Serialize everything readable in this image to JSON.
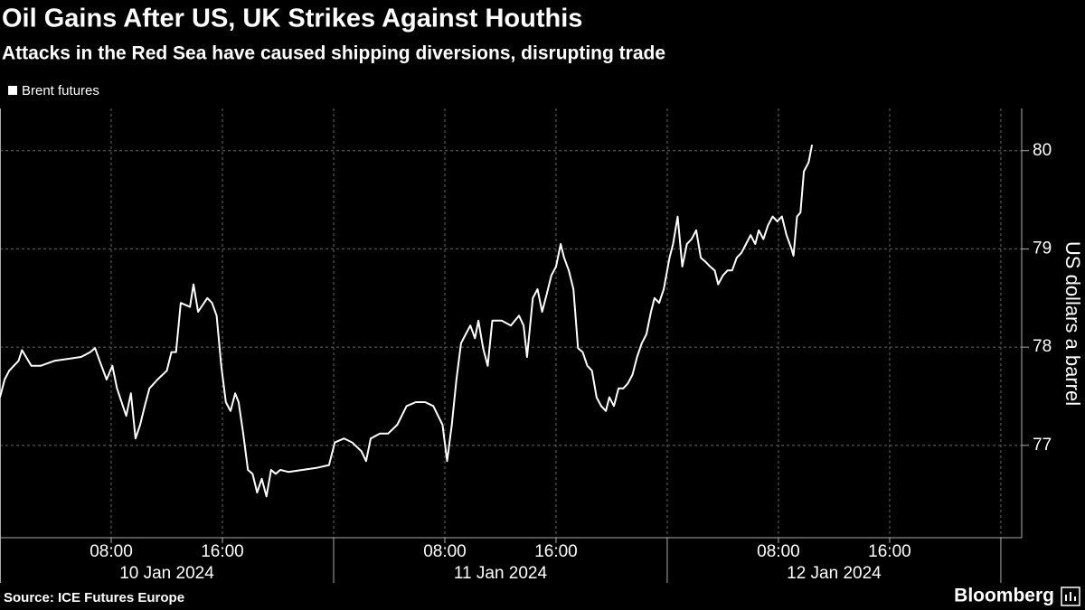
{
  "chart_data": {
    "type": "line",
    "title": "Oil Gains After US, UK Strikes Against Houthis",
    "subtitle": "Attacks in the Red Sea have caused shipping diversions, disrupting trade",
    "y_axis_label": "US dollars a barrel",
    "source": "Source: ICE Futures Europe",
    "brand": "Bloomberg",
    "x": [
      "2024-01-10T00:00",
      "2024-01-10T00:20",
      "2024-01-10T00:40",
      "2024-01-10T01:20",
      "2024-01-10T01:35",
      "2024-01-10T02:15",
      "2024-01-10T02:55",
      "2024-01-10T03:55",
      "2024-01-10T04:50",
      "2024-01-10T05:50",
      "2024-01-10T06:30",
      "2024-01-10T06:50",
      "2024-01-10T07:10",
      "2024-01-10T07:40",
      "2024-01-10T08:05",
      "2024-01-10T08:25",
      "2024-01-10T09:05",
      "2024-01-10T09:25",
      "2024-01-10T09:45",
      "2024-01-10T10:05",
      "2024-01-10T10:25",
      "2024-01-10T10:45",
      "2024-01-10T11:20",
      "2024-01-10T12:00",
      "2024-01-10T12:20",
      "2024-01-10T12:40",
      "2024-01-10T13:00",
      "2024-01-10T13:40",
      "2024-01-10T13:55",
      "2024-01-10T14:15",
      "2024-01-10T14:55",
      "2024-01-10T15:15",
      "2024-01-10T15:35",
      "2024-01-10T15:55",
      "2024-01-10T16:15",
      "2024-01-10T16:35",
      "2024-01-10T16:55",
      "2024-01-10T17:10",
      "2024-01-10T17:30",
      "2024-01-10T17:50",
      "2024-01-10T18:10",
      "2024-01-10T18:30",
      "2024-01-10T18:50",
      "2024-01-10T19:10",
      "2024-01-10T19:30",
      "2024-01-10T19:50",
      "2024-01-10T20:10",
      "2024-01-10T20:45",
      "2024-01-10T21:45",
      "2024-01-10T22:45",
      "2024-01-10T23:40",
      "2024-01-11T00:05",
      "2024-01-11T00:45",
      "2024-01-11T01:20",
      "2024-01-11T02:00",
      "2024-01-11T02:20",
      "2024-01-11T02:40",
      "2024-01-11T03:20",
      "2024-01-11T03:55",
      "2024-01-11T04:35",
      "2024-01-11T05:15",
      "2024-01-11T05:55",
      "2024-01-11T06:35",
      "2024-01-11T07:10",
      "2024-01-11T07:50",
      "2024-01-11T08:10",
      "2024-01-11T08:30",
      "2024-01-11T08:50",
      "2024-01-11T09:10",
      "2024-01-11T09:30",
      "2024-01-11T09:50",
      "2024-01-11T10:10",
      "2024-01-11T10:25",
      "2024-01-11T10:45",
      "2024-01-11T11:05",
      "2024-01-11T11:25",
      "2024-01-11T12:05",
      "2024-01-11T12:45",
      "2024-01-11T13:20",
      "2024-01-11T13:40",
      "2024-01-11T13:55",
      "2024-01-11T14:20",
      "2024-01-11T14:40",
      "2024-01-11T15:00",
      "2024-01-11T15:20",
      "2024-01-11T15:40",
      "2024-01-11T16:00",
      "2024-01-11T16:20",
      "2024-01-11T16:35",
      "2024-01-11T16:55",
      "2024-01-11T17:15",
      "2024-01-11T17:35",
      "2024-01-11T17:55",
      "2024-01-11T18:15",
      "2024-01-11T18:35",
      "2024-01-11T18:55",
      "2024-01-11T19:15",
      "2024-01-11T19:35",
      "2024-01-11T19:50",
      "2024-01-11T20:10",
      "2024-01-11T20:30",
      "2024-01-11T20:50",
      "2024-01-11T21:10",
      "2024-01-11T21:30",
      "2024-01-11T21:50",
      "2024-01-11T22:10",
      "2024-01-11T22:30",
      "2024-01-11T22:50",
      "2024-01-11T23:05",
      "2024-01-11T23:25",
      "2024-01-11T23:45",
      "2024-01-12T00:10",
      "2024-01-12T00:25",
      "2024-01-12T00:45",
      "2024-01-12T01:05",
      "2024-01-12T01:25",
      "2024-01-12T01:45",
      "2024-01-12T02:05",
      "2024-01-12T02:25",
      "2024-01-12T02:45",
      "2024-01-12T03:05",
      "2024-01-12T03:25",
      "2024-01-12T03:40",
      "2024-01-12T04:00",
      "2024-01-12T04:20",
      "2024-01-12T04:40",
      "2024-01-12T05:00",
      "2024-01-12T05:20",
      "2024-01-12T05:40",
      "2024-01-12T06:00",
      "2024-01-12T06:20",
      "2024-01-12T06:35",
      "2024-01-12T06:55",
      "2024-01-12T07:15",
      "2024-01-12T07:35",
      "2024-01-12T07:55",
      "2024-01-12T08:15",
      "2024-01-12T08:35",
      "2024-01-12T08:55",
      "2024-01-12T09:05",
      "2024-01-12T09:20",
      "2024-01-12T09:35",
      "2024-01-12T09:50",
      "2024-01-12T10:10",
      "2024-01-12T10:25"
    ],
    "series": [
      {
        "name": "Brent futures",
        "color": "#ffffff",
        "values": [
          77.49,
          77.67,
          77.76,
          77.86,
          77.97,
          77.81,
          77.81,
          77.86,
          77.88,
          77.9,
          77.95,
          77.99,
          77.86,
          77.67,
          77.81,
          77.58,
          77.3,
          77.53,
          77.07,
          77.21,
          77.4,
          77.58,
          77.67,
          77.76,
          77.95,
          77.95,
          78.45,
          78.41,
          78.64,
          78.36,
          78.5,
          78.45,
          78.32,
          77.81,
          77.44,
          77.35,
          77.53,
          77.44,
          77.12,
          76.75,
          76.71,
          76.52,
          76.66,
          76.48,
          76.75,
          76.71,
          76.75,
          76.73,
          76.75,
          76.77,
          76.8,
          77.03,
          77.07,
          77.03,
          76.94,
          76.84,
          77.07,
          77.12,
          77.12,
          77.21,
          77.4,
          77.44,
          77.44,
          77.4,
          77.21,
          76.84,
          77.21,
          77.67,
          78.04,
          78.13,
          78.22,
          78.09,
          78.27,
          77.99,
          77.81,
          78.27,
          78.27,
          78.22,
          78.32,
          78.22,
          77.9,
          78.5,
          78.59,
          78.36,
          78.54,
          78.73,
          78.82,
          79.05,
          78.91,
          78.78,
          78.59,
          77.99,
          77.95,
          77.81,
          77.76,
          77.49,
          77.4,
          77.35,
          77.49,
          77.4,
          77.58,
          77.58,
          77.63,
          77.72,
          77.9,
          78.04,
          78.13,
          78.36,
          78.5,
          78.45,
          78.59,
          78.91,
          79.05,
          79.33,
          78.82,
          79.05,
          79.1,
          79.19,
          78.91,
          78.87,
          78.82,
          78.78,
          78.64,
          78.73,
          78.78,
          78.78,
          78.91,
          78.96,
          79.05,
          79.14,
          79.05,
          79.19,
          79.1,
          79.24,
          79.33,
          79.28,
          79.33,
          79.14,
          79.01,
          78.93,
          79.33,
          79.37,
          79.79,
          79.88,
          80.06
        ]
      }
    ],
    "xlim": [
      "2024-01-10T00:00",
      "2024-01-13T01:30"
    ],
    "xticks": [
      {
        "value": "2024-01-10T08:00",
        "label": "08:00"
      },
      {
        "value": "2024-01-10T16:00",
        "label": "16:00"
      },
      {
        "value": "2024-01-11T08:00",
        "label": "08:00"
      },
      {
        "value": "2024-01-11T16:00",
        "label": "16:00"
      },
      {
        "value": "2024-01-12T08:00",
        "label": "08:00"
      },
      {
        "value": "2024-01-12T16:00",
        "label": "16:00"
      }
    ],
    "day_breaks": [
      "2024-01-11T00:00",
      "2024-01-12T00:00",
      "2024-01-13T00:00"
    ],
    "x_dates": [
      {
        "value": "2024-01-10T12:00",
        "label": "10 Jan 2024"
      },
      {
        "value": "2024-01-11T12:00",
        "label": "11 Jan 2024"
      },
      {
        "value": "2024-01-12T12:00",
        "label": "12 Jan 2024"
      }
    ],
    "ylim": [
      76.06,
      80.43
    ],
    "yticks": [
      77,
      78,
      79,
      80
    ],
    "grid": true
  }
}
